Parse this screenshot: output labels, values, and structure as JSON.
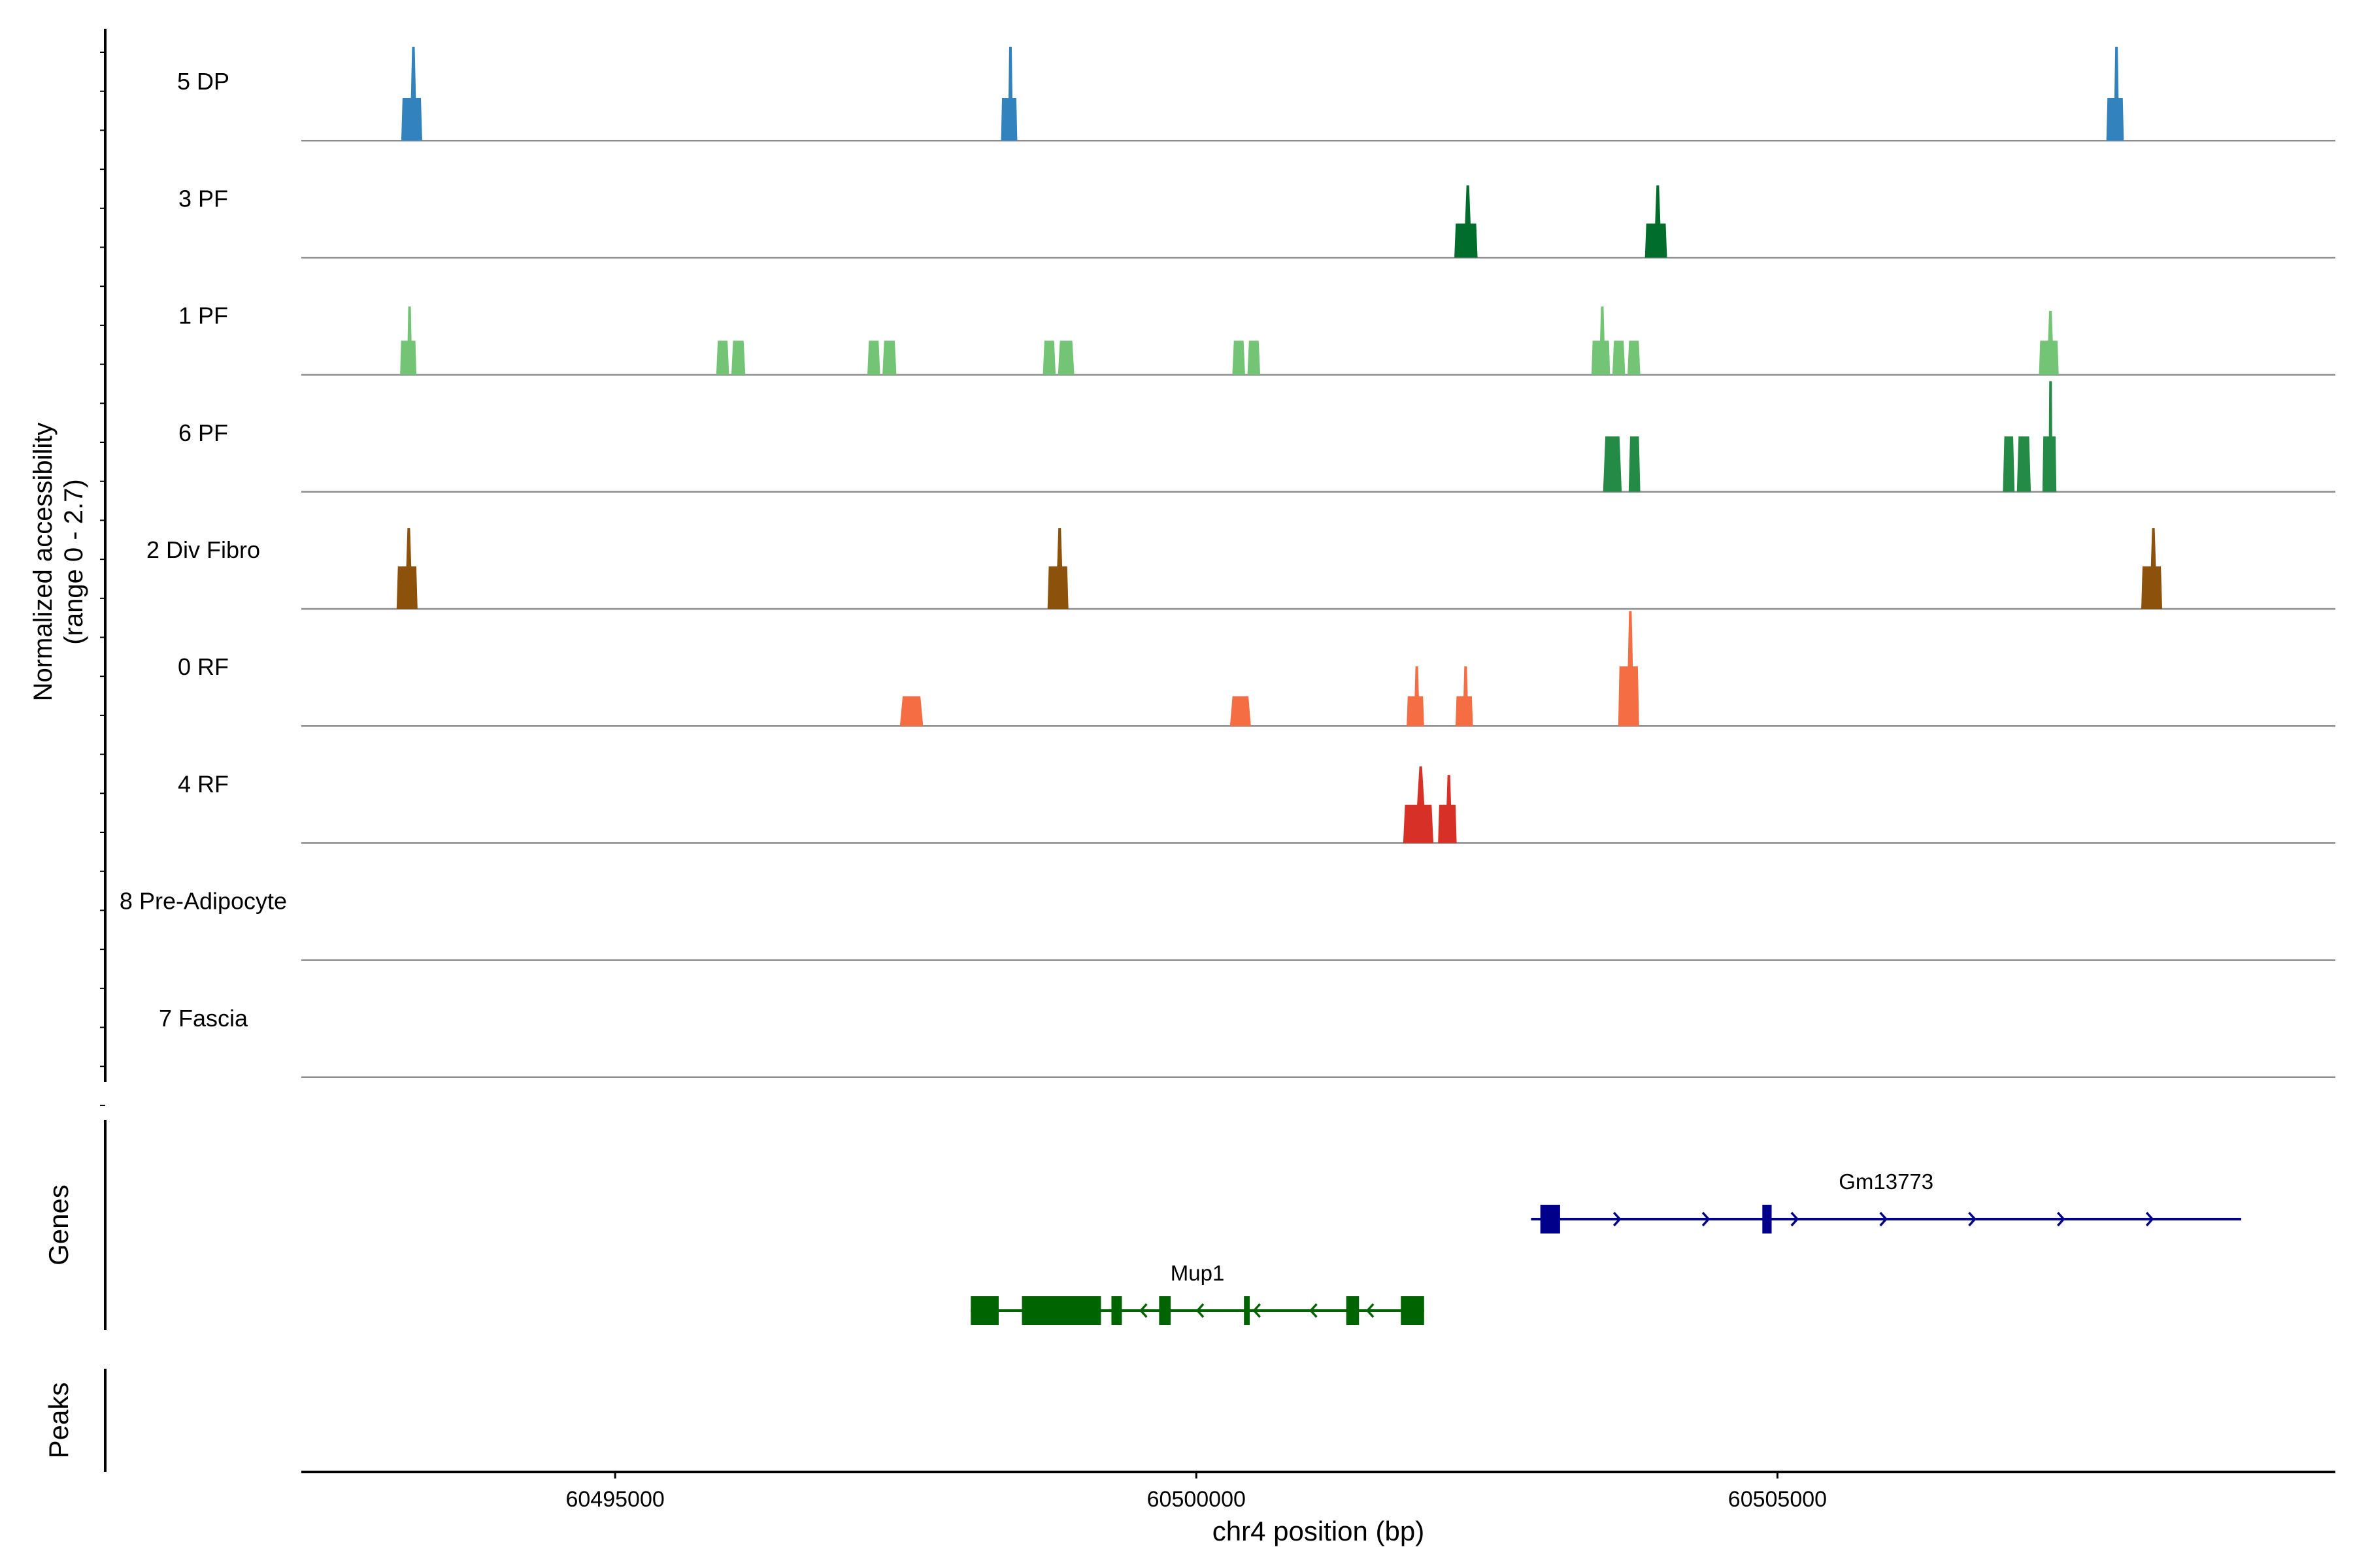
{
  "chart_data": {
    "type": "area",
    "title": "",
    "ylabel_line1": "Normalized accessibility",
    "ylabel_line2": "(range 0 - 2.7)",
    "xlabel": "chr4 position (bp)",
    "xlim": [
      60492300,
      60509800
    ],
    "ylim": [
      0,
      2.7
    ],
    "x_ticks": [
      60495000,
      60500000,
      60505000
    ],
    "x_tick_labels": [
      "60495000",
      "60500000",
      "60505000"
    ],
    "panel_labels": {
      "genes": "Genes",
      "peaks": "Peaks"
    },
    "tracks": [
      {
        "name": "5 DP",
        "color": "#3182BD",
        "peaks": [
          {
            "start": 60493160,
            "end": 60493340,
            "height": 1.0,
            "tip": 2.2
          },
          {
            "start": 60498320,
            "end": 60498460,
            "height": 1.0,
            "tip": 2.2
          },
          {
            "start": 60507830,
            "end": 60507980,
            "height": 1.0,
            "tip": 2.2
          }
        ]
      },
      {
        "name": "3 PF",
        "color": "#006D2C",
        "peaks": [
          {
            "start": 60502220,
            "end": 60502420,
            "height": 0.8,
            "tip": 1.7
          },
          {
            "start": 60503860,
            "end": 60504050,
            "height": 0.8,
            "tip": 1.7
          }
        ]
      },
      {
        "name": "1 PF",
        "color": "#74C476",
        "peaks": [
          {
            "start": 60493150,
            "end": 60493290,
            "height": 0.8,
            "tip": 1.6
          },
          {
            "start": 60495870,
            "end": 60495980,
            "height": 0.8,
            "tip": 0.8
          },
          {
            "start": 60496000,
            "end": 60496120,
            "height": 0.8,
            "tip": 0.8
          },
          {
            "start": 60497170,
            "end": 60497280,
            "height": 0.8,
            "tip": 0.8
          },
          {
            "start": 60497300,
            "end": 60497420,
            "height": 0.8,
            "tip": 0.8
          },
          {
            "start": 60498680,
            "end": 60498790,
            "height": 0.8,
            "tip": 0.8
          },
          {
            "start": 60498810,
            "end": 60498950,
            "height": 0.8,
            "tip": 0.8
          },
          {
            "start": 60500310,
            "end": 60500420,
            "height": 0.8,
            "tip": 0.8
          },
          {
            "start": 60500440,
            "end": 60500550,
            "height": 0.8,
            "tip": 0.8
          },
          {
            "start": 60503400,
            "end": 60503560,
            "height": 0.8,
            "tip": 1.6
          },
          {
            "start": 60503580,
            "end": 60503690,
            "height": 0.8,
            "tip": 0.8
          },
          {
            "start": 60503710,
            "end": 60503820,
            "height": 0.8,
            "tip": 0.8
          },
          {
            "start": 60507250,
            "end": 60507420,
            "height": 0.8,
            "tip": 1.5
          }
        ]
      },
      {
        "name": "6 PF",
        "color": "#238B45",
        "peaks": [
          {
            "start": 60503500,
            "end": 60503660,
            "height": 1.3,
            "tip": 1.3
          },
          {
            "start": 60503720,
            "end": 60503820,
            "height": 1.3,
            "tip": 1.3
          },
          {
            "start": 60506940,
            "end": 60507040,
            "height": 1.3,
            "tip": 1.3
          },
          {
            "start": 60507060,
            "end": 60507180,
            "height": 1.3,
            "tip": 1.3
          },
          {
            "start": 60507280,
            "end": 60507400,
            "height": 1.3,
            "tip": 2.6
          }
        ]
      },
      {
        "name": "2 Div Fibro",
        "color": "#8C510A",
        "peaks": [
          {
            "start": 60493120,
            "end": 60493300,
            "height": 1.0,
            "tip": 1.9
          },
          {
            "start": 60498720,
            "end": 60498900,
            "height": 1.0,
            "tip": 1.9
          },
          {
            "start": 60508130,
            "end": 60508310,
            "height": 1.0,
            "tip": 1.9
          }
        ]
      },
      {
        "name": "0 RF",
        "color": "#F46D43",
        "peaks": [
          {
            "start": 60497450,
            "end": 60497650,
            "height": 0.7,
            "tip": 0.7
          },
          {
            "start": 60500290,
            "end": 60500470,
            "height": 0.7,
            "tip": 0.7
          },
          {
            "start": 60501810,
            "end": 60501960,
            "height": 0.7,
            "tip": 1.4
          },
          {
            "start": 60502230,
            "end": 60502380,
            "height": 0.7,
            "tip": 1.4
          },
          {
            "start": 60503630,
            "end": 60503810,
            "height": 1.4,
            "tip": 2.7
          }
        ]
      },
      {
        "name": "4 RF",
        "color": "#D73027",
        "peaks": [
          {
            "start": 60501780,
            "end": 60502040,
            "height": 0.9,
            "tip": 1.8
          },
          {
            "start": 60502080,
            "end": 60502240,
            "height": 0.9,
            "tip": 1.6
          }
        ]
      },
      {
        "name": "8 Pre-Adipocyte",
        "color": "#6A3D9A",
        "peaks": []
      },
      {
        "name": "7 Fascia",
        "color": "#B15928",
        "peaks": []
      }
    ],
    "genes": [
      {
        "name": "Mup1",
        "color": "#006400",
        "strand": "-",
        "start": 60498060,
        "end": 60501960,
        "exons": [
          [
            60498060,
            60498300
          ],
          [
            60498500,
            60499180
          ],
          [
            60499270,
            60499360
          ],
          [
            60499680,
            60499780
          ],
          [
            60500410,
            60500460
          ],
          [
            60501290,
            60501400
          ],
          [
            60501760,
            60501960
          ]
        ]
      },
      {
        "name": "Gm13773",
        "color": "#00008B",
        "strand": "+",
        "start": 60502880,
        "end": 60508990,
        "exons": [
          [
            60502960,
            60503130
          ],
          [
            60504870,
            60504950
          ]
        ]
      }
    ]
  }
}
